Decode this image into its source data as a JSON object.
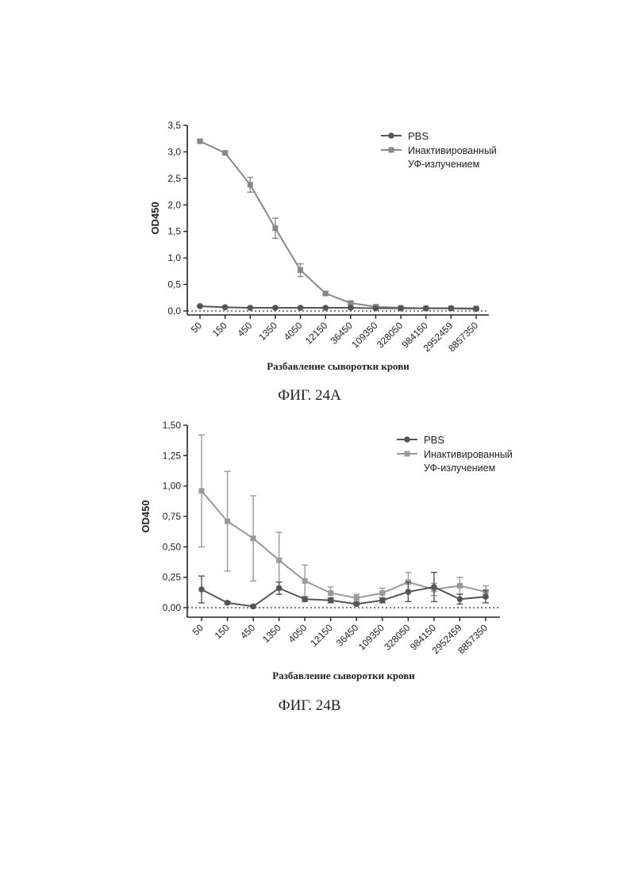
{
  "chart_data": [
    {
      "type": "line",
      "caption": "ФИГ. 24А",
      "xlabel": "Разбавление сыворотки крови",
      "ylabel": "OD450",
      "categories": [
        "50",
        "150",
        "450",
        "1350",
        "4050",
        "12150",
        "36450",
        "109350",
        "328050",
        "984150",
        "2952459",
        "8857350"
      ],
      "ylim": [
        0,
        3.5
      ],
      "yticks": [
        "0,0",
        "0,5",
        "1,0",
        "1,5",
        "2,0",
        "2,5",
        "3,0",
        "3,5"
      ],
      "ytick_values": [
        0,
        0.5,
        1.0,
        1.5,
        2.0,
        2.5,
        3.0,
        3.5
      ],
      "baseline": 0,
      "legend_position": "top-right",
      "series": [
        {
          "name": "PBS",
          "marker": "circle",
          "color": "#555555",
          "values": [
            0.09,
            0.07,
            0.06,
            0.06,
            0.06,
            0.06,
            0.06,
            0.05,
            0.05,
            0.05,
            0.05,
            0.04
          ],
          "errors": [
            0.01,
            0.01,
            0.01,
            0.01,
            0.01,
            0.01,
            0.01,
            0.01,
            0.01,
            0.01,
            0.01,
            0.01
          ]
        },
        {
          "name_lines": [
            "Инактивированный",
            "УФ-излучением"
          ],
          "marker": "square",
          "color": "#888888",
          "values": [
            3.2,
            2.98,
            2.38,
            1.56,
            0.77,
            0.33,
            0.15,
            0.08,
            0.06,
            0.05,
            0.05,
            0.05
          ],
          "errors": [
            0.02,
            0.03,
            0.14,
            0.19,
            0.12,
            0.03,
            0.03,
            0.02,
            0.01,
            0.01,
            0.01,
            0.01
          ]
        }
      ]
    },
    {
      "type": "line",
      "caption": "ФИГ. 24В",
      "xlabel": "Разбавление сыворотки крови",
      "ylabel": "OD450",
      "categories": [
        "50",
        "150",
        "450",
        "1350",
        "4050",
        "12150",
        "36450",
        "109350",
        "328050",
        "984150",
        "2952459",
        "8857350"
      ],
      "ylim": [
        0,
        1.5
      ],
      "yticks": [
        "0,00",
        "0,25",
        "0,50",
        "0,75",
        "1,00",
        "1,25",
        "1,50"
      ],
      "ytick_values": [
        0,
        0.25,
        0.5,
        0.75,
        1.0,
        1.25,
        1.5
      ],
      "baseline": 0,
      "legend_position": "top-right",
      "series": [
        {
          "name": "PBS",
          "marker": "circle",
          "color": "#555555",
          "values": [
            0.15,
            0.04,
            0.01,
            0.16,
            0.07,
            0.06,
            0.03,
            0.06,
            0.13,
            0.17,
            0.07,
            0.09
          ],
          "errors": [
            0.11,
            0.01,
            0.01,
            0.05,
            0.02,
            0.02,
            0.01,
            0.02,
            0.08,
            0.12,
            0.04,
            0.05
          ]
        },
        {
          "name_lines": [
            "Инактивированный",
            "УФ-излучением"
          ],
          "marker": "square",
          "color": "#999999",
          "values": [
            0.96,
            0.71,
            0.57,
            0.39,
            0.22,
            0.12,
            0.08,
            0.12,
            0.21,
            0.15,
            0.18,
            0.13
          ],
          "errors": [
            0.46,
            0.41,
            0.35,
            0.23,
            0.13,
            0.05,
            0.03,
            0.04,
            0.08,
            0.05,
            0.07,
            0.05
          ]
        }
      ]
    }
  ]
}
